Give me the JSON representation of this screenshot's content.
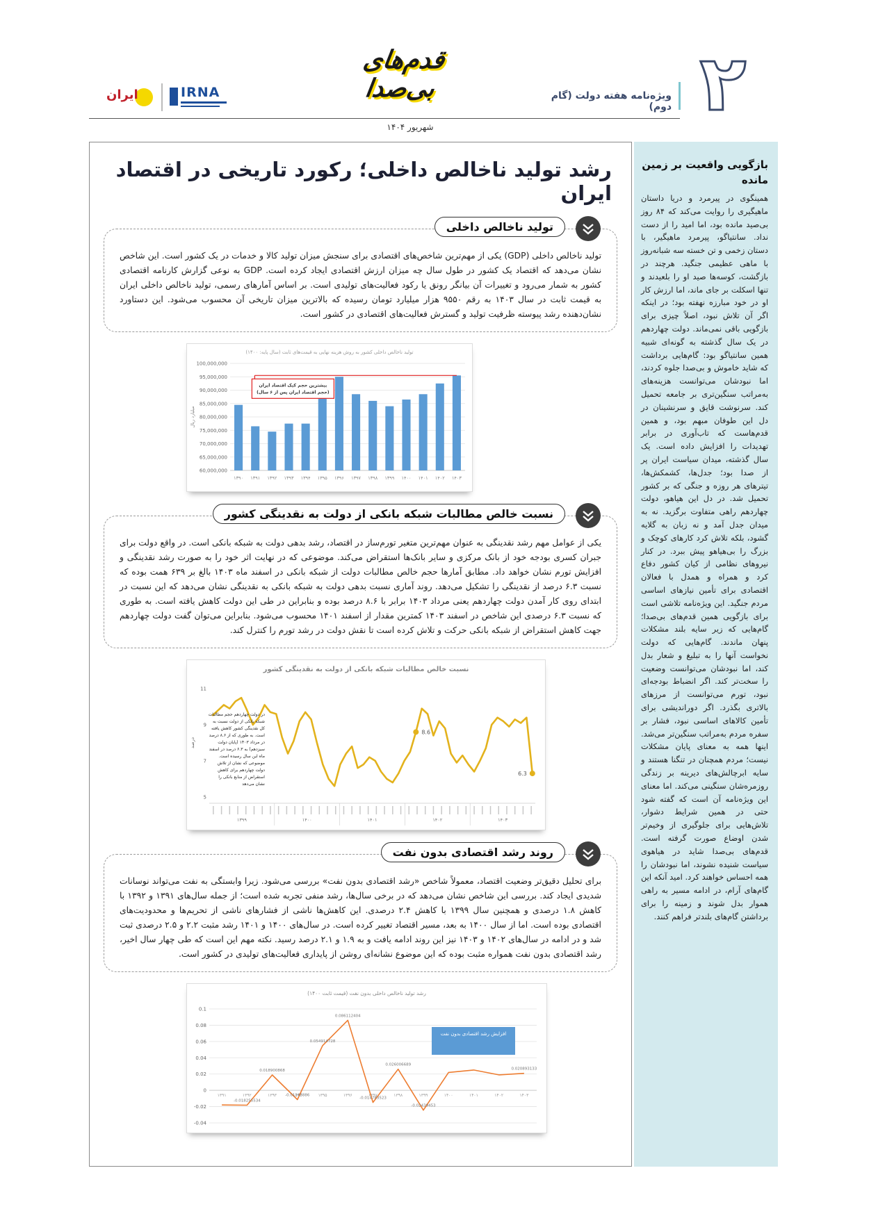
{
  "header": {
    "issue_number": "۲",
    "supplement": "ویژه‌نامه هفته دولت (گام دوم)",
    "date": "شهریور ۱۴۰۴",
    "logo_title": "قدم‌های بی‌صدا",
    "logo_irna": "IRNA",
    "logo_iran": "ایران"
  },
  "article": {
    "title": "رشد تولید ناخالص داخلی؛ رکورد تاریخی در اقتصاد ایران",
    "sections": [
      {
        "heading": "تولید ناخالص داخلی",
        "body": "تولید ناخالص داخلی (GDP) یکی از مهم‌ترین شاخص‌های اقتصادی برای سنجش میزان تولید کالا و خدمات در یک کشور است. این شاخص نشان می‌دهد که اقتصاد یک کشور در طول سال چه میزان ارزش اقتصادی ایجاد کرده است. GDP به نوعی گزارش کارنامه اقتصادی کشور به شمار می‌رود و تغییرات آن بیانگر رونق یا رکود فعالیت‌های تولیدی است. بر اساس آمارهای رسمی، تولید ناخالص داخلی ایران به قیمت ثابت در سال ۱۴۰۳ به رقم ۹۵۵۰ هزار میلیارد تومان رسیده که بالاترین میزان تاریخی آن محسوب می‌شود. این دستاورد نشان‌دهنده رشد پیوسته ظرفیت تولید و گسترش فعالیت‌های اقتصادی در کشور است.",
        "chart": {
          "type": "bar",
          "title": "تولید ناخالص داخلی کشور به روش هزینه نهایی به قیمت‌های ثابت (سال پایه: ۱۴۰۰)",
          "y_label": "میلیارد ریال",
          "categories": [
            "۱۳۹۰",
            "۱۳۹۱",
            "۱۳۹۲",
            "۱۳۹۳",
            "۱۳۹۴",
            "۱۳۹۵",
            "۱۳۹۶",
            "۱۳۹۷",
            "۱۳۹۸",
            "۱۳۹۹",
            "۱۴۰۰",
            "۱۴۰۱",
            "۱۴۰۲",
            "۱۴۰۳"
          ],
          "values": [
            84500000,
            76500000,
            74500000,
            77500000,
            77500000,
            88000000,
            95000000,
            88500000,
            86000000,
            84000000,
            86500000,
            88500000,
            92500000,
            95500000
          ],
          "color": "#5b9bd5",
          "ylim": [
            60000000,
            100000000
          ],
          "yticks": [
            {
              "value": 60000000,
              "label": "60,000,000"
            },
            {
              "value": 65000000,
              "label": "65,000,000"
            },
            {
              "value": 70000000,
              "label": "70,000,000"
            },
            {
              "value": 75000000,
              "label": "75,000,000"
            },
            {
              "value": 80000000,
              "label": "80,000,000"
            },
            {
              "value": 85000000,
              "label": "85,000,000"
            },
            {
              "value": 90000000,
              "label": "90,000,000"
            },
            {
              "value": 95000000,
              "label": "95,000,000"
            },
            {
              "value": 100000000,
              "label": "100,000,000"
            }
          ],
          "grid": true,
          "annotation": [
            "بیشترین حجم کیک اقتصاد ایران",
            "(حجم اقتصاد ایران پس از ۶ سال)"
          ],
          "annotation_color": "#e02020"
        }
      },
      {
        "heading": "نسبت خالص مطالبات شبکه بانکی از دولت به نقدینگی کشور",
        "body": "یکی از عوامل مهم رشد نقدینگی به عنوان مهم‌ترین متغیر تورم‌ساز در اقتصاد، رشد بدهی دولت به شبکه بانکی است. در واقع دولت برای جبران کسری بودجه خود از بانک مرکزی و سایر بانک‌ها استقراض می‌کند. موضوعی که در نهایت اثر خود را به صورت رشد نقدینگی و افزایش تورم نشان خواهد داد. مطابق آمارها حجم خالص مطالبات دولت از شبکه بانکی در اسفند ماه ۱۴۰۳ بالغ بر ۶۳۹ همت بوده که نسبت ۶.۳ درصد از نقدینگی را تشکیل می‌دهد. روند آماری نسبت بدهی دولت به شبکه بانکی به نقدینگی نشان می‌دهد که این نسبت در ابتدای روی کار آمدن دولت چهاردهم یعنی مرداد ۱۴۰۳ برابر با ۸.۶ درصد بوده و بنابراین در طی این دولت کاهش یافته است. به طوری که نسبت ۶.۳ درصدی این شاخص در اسفند ۱۴۰۳ کمترین مقدار از اسفند ۱۴۰۱ محسوب می‌شود. بنابراین می‌توان گفت دولت چهاردهم جهت کاهش استقراض از شبکه بانکی حرکت و تلاش کرده است تا نقش دولت در رشد تورم را کنترل کند.",
        "chart": {
          "type": "line",
          "title": "نسبت خالص مطالبات شبکه بانکی از دولت به نقدینگی کشور",
          "y_label": "درصد",
          "year_groups": [
            "۱۳۹۹",
            "۱۴۰۰",
            "۱۴۰۱",
            "۱۴۰۲",
            "۱۴۰۳"
          ],
          "values": [
            9.5,
            9.8,
            10.1,
            9.9,
            10.3,
            10.5,
            9.8,
            9.0,
            9.4,
            10.1,
            9.7,
            9.6,
            8.3,
            7.4,
            8.1,
            9.2,
            9.7,
            9.3,
            8.0,
            6.8,
            6.0,
            5.6,
            6.8,
            7.4,
            7.8,
            6.6,
            6.8,
            7.2,
            7.0,
            6.4,
            6.0,
            5.8,
            6.3,
            7.0,
            7.5,
            8.6,
            9.9,
            9.6,
            8.4,
            9.2,
            8.8,
            7.4,
            6.9,
            7.3,
            6.8,
            6.4,
            7.0,
            7.7,
            9.0,
            9.4,
            9.2,
            8.9,
            9.3,
            9.1,
            9.4,
            6.3
          ],
          "value_labels": [
            null,
            null,
            null,
            null,
            null,
            null,
            null,
            null,
            null,
            null,
            null,
            null,
            null,
            null,
            null,
            null,
            null,
            null,
            null,
            null,
            null,
            null,
            null,
            null,
            null,
            null,
            null,
            null,
            null,
            null,
            null,
            null,
            null,
            null,
            null,
            "8.6",
            null,
            null,
            null,
            null,
            null,
            null,
            null,
            null,
            null,
            null,
            null,
            null,
            null,
            null,
            null,
            null,
            null,
            null,
            null,
            "6.3"
          ],
          "color": "#e3b21c",
          "markers": true,
          "ylim": [
            4.8,
            11.2
          ],
          "yticks": [
            5,
            7,
            9,
            11
          ],
          "grid": false,
          "note": "در دولت چهاردهم حجم مطالبات شبکه بانکی از دولت نسبت به کل نقدینگی کشور کاهش یافته است. به طوری که از ۸.۶ درصد در مرداد ۱۴۰۳ (پایان دولت سیزدهم) به ۶.۳ درصد در اسفند ماه این سال رسیده است. موضوعی که نشان از تلاش دولت چهاردهم برای کاهش استقراض از منابع بانکی را نشان می‌دهد"
        }
      },
      {
        "heading": "روند رشد اقتصادی بدون نفت",
        "body": "برای تحلیل دقیق‌تر وضعیت اقتصاد، معمولاً شاخص «رشد اقتصادی بدون نفت» بررسی می‌شود. زیرا وابستگی به نفت می‌تواند نوسانات شدیدی ایجاد کند. بررسی این شاخص نشان می‌دهد که در برخی سال‌ها، رشد منفی تجربه شده است؛ از جمله سال‌های ۱۳۹۱ و ۱۳۹۲ با کاهش ۱.۸ درصدی و همچنین سال ۱۳۹۹ با کاهش ۲.۴ درصدی. این کاهش‌ها ناشی از فشارهای ناشی از تحریم‌ها و محدودیت‌های اقتصادی بوده است. اما از سال ۱۴۰۰ به بعد، مسیر اقتصاد تغییر کرده است. در سال‌های ۱۴۰۰ و ۱۴۰۱ رشد مثبت ۲.۲ و ۲.۵ درصدی ثبت شد و در ادامه در سال‌های ۱۴۰۲ و ۱۴۰۳ نیز این روند ادامه یافت و به ۱.۹ و ۲.۱ درصد رسید. نکته مهم این است که طی چهار سال اخیر، رشد اقتصادی بدون نفت همواره مثبت بوده که این موضوع نشانه‌ای روشن از پایداری فعالیت‌های تولیدی در کشور است.",
        "chart": {
          "type": "line",
          "title": "رشد تولید ناخالص داخلی بدون نفت (قیمت ثابت ۱۴۰۰)",
          "categories": [
            "۱۳۹۱",
            "۱۳۹۲",
            "۱۳۹۳",
            "۱۳۹۴",
            "۱۳۹۵",
            "۱۳۹۶",
            "۱۳۹۷",
            "۱۳۹۸",
            "۱۳۹۹",
            "۱۴۰۰",
            "۱۴۰۱",
            "۱۴۰۲",
            "۱۴۰۳"
          ],
          "values": [
            -0.018,
            -0.018255534,
            0.018900868,
            -0.01143886,
            0.054914728,
            0.086112404,
            -0.014783523,
            0.026006689,
            -0.02439453,
            0.022,
            0.025,
            0.019,
            0.020893133
          ],
          "value_labels": [
            null,
            "-0.018255534",
            "0.018900868",
            "-0.01143886",
            "0.054914728",
            "0.086112404",
            "-0.014783523",
            "0.026006689",
            "-0.02439453",
            null,
            null,
            null,
            "0.020893133"
          ],
          "color": "#ed7d31",
          "markers": false,
          "ylim": [
            -0.04,
            0.1
          ],
          "yticks": [
            -0.04,
            -0.02,
            0,
            0.02,
            0.04,
            0.06,
            0.08,
            0.1
          ],
          "grid": true,
          "note": "افزایش رشد اقتصادی بدون نفت"
        }
      }
    ]
  },
  "sidebar": {
    "title": "بازگویی واقعیت بر زمین مانده",
    "body": "همینگوی در پیرمرد و دریا داستان ماهیگیری را روایت می‌کند که ۸۴ روز بی‌صید مانده بود، اما امید را از دست نداد. سانتیاگو، پیرمرد ماهیگیر، با دستان زخمی و تن خسته سه شبانه‌روز با ماهی عظیمی جنگید. هرچند در بازگشت، کوسه‌ها صید او را بلعیدند و تنها اسکلت بر جای ماند، اما ارزش کار او در خود مبارزه نهفته بود؛ در اینکه اگر آن تلاش نبود، اصلاً چیزی برای بازگویی باقی نمی‌ماند. دولت چهاردهم در یک سال گذشته به گونه‌ای شبیه همین سانتیاگو بود: گام‌هایی برداشت که شاید خاموش و بی‌صدا جلوه کردند، اما نبودشان می‌توانست هزینه‌های به‌مراتب سنگین‌تری بر جامعه تحمیل کند. سرنوشت قایق و سرنشینان در دل این طوفان مبهم بود، و همین قدم‌هاست که تاب‌آوری در برابر تهدیدات را افزایش داده است. یک سال گذشته، میدان سیاست ایران پر از صدا بود؛ جدل‌ها، کشمکش‌ها، تیترهای هر روزه و جنگی که بر کشور تحمیل شد. در دل این هیاهو، دولت چهاردهم راهی متفاوت برگزید. نه به میدان جدل آمد و نه زبان به گلایه گشود، بلکه تلاش کرد کارهای کوچک و بزرگ را بی‌هیاهو پیش ببرد. در کنار نیروهای نظامی از کیان کشور دفاع کرد و همراه و همدل با فعالان اقتصادی برای تأمین نیازهای اساسی مردم جنگید. این ویژه‌نامه تلاشی است برای بازگویی همین قدم‌های بی‌صدا؛ گام‌هایی که زیر سایه بلند مشکلات پنهان ماندند. گام‌هایی که دولت نخواست آنها را به تبلیغ و شعار بدل کند، اما نبودشان می‌توانست وضعیت را سخت‌تر کند. اگر انضباط بودجه‌ای نبود، تورم می‌توانست از مرزهای بالاتری بگذرد. اگر دوراندیشی برای تأمین کالاهای اساسی نبود، فشار بر سفره مردم به‌مراتب سنگین‌تر می‌شد. اینها همه به معنای پایان مشکلات نیست؛ مردم همچنان در تنگنا هستند و سایه ابرچالش‌های دیرینه بر زندگی روزمره‌شان سنگینی می‌کند. اما معنای این ویژه‌نامه آن است که گفته شود حتی در همین شرایط دشوار، تلاش‌هایی برای جلوگیری از وخیم‌تر شدن اوضاع صورت گرفته است. قدم‌های بی‌صدا شاید در هیاهوی سیاست شنیده نشوند، اما نبودشان را همه احساس خواهند کرد. امید آنکه این گام‌های آرام، در ادامه مسیر به راهی هموار بدل شوند و زمینه را برای برداشتن گام‌های بلندتر فراهم کنند."
  }
}
